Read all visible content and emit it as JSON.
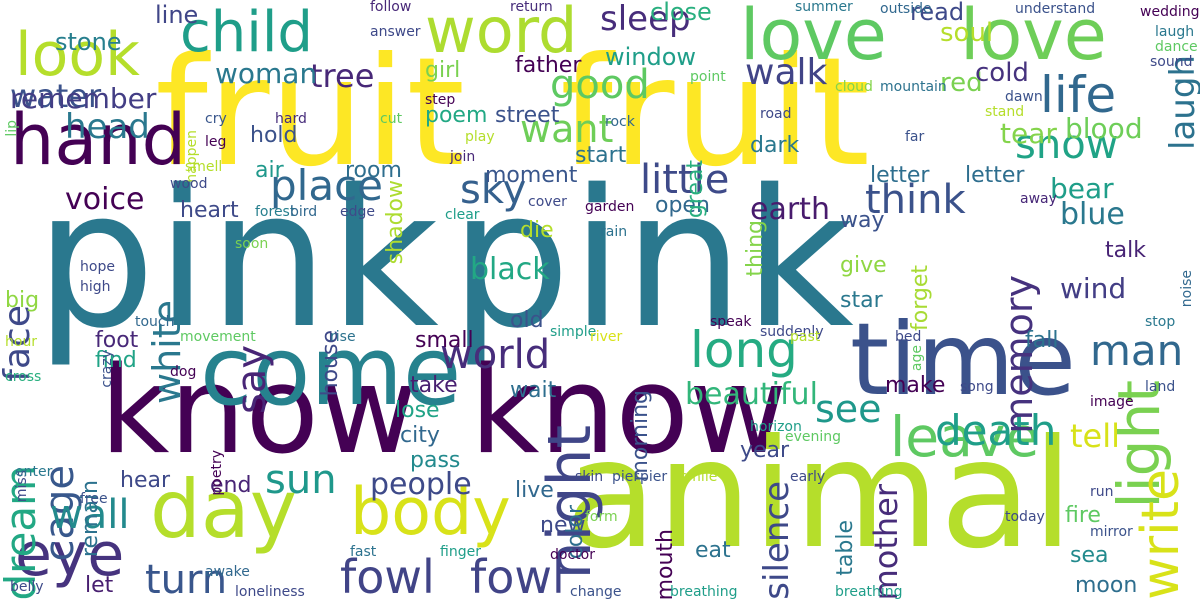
{
  "words": [
    {
      "text": "pink",
      "color": "#2a788e"
    },
    {
      "text": "pink",
      "color": "#2a788e"
    },
    {
      "text": "fruit",
      "color": "#fde725"
    },
    {
      "text": "fruit",
      "color": "#fde725"
    },
    {
      "text": "know",
      "color": "#440154"
    },
    {
      "text": "know",
      "color": "#440154"
    },
    {
      "text": "animal",
      "color": "#b5de2b"
    },
    {
      "text": "come",
      "color": "#26828e"
    },
    {
      "text": "time",
      "color": "#3b528b"
    },
    {
      "text": "day",
      "color": "#b5de2b"
    },
    {
      "text": "body",
      "color": "#d8e219"
    },
    {
      "text": "love",
      "color": "#5ec962"
    },
    {
      "text": "love",
      "color": "#6ece58"
    },
    {
      "text": "child",
      "color": "#1f9e89"
    },
    {
      "text": "word",
      "color": "#addc30"
    },
    {
      "text": "look",
      "color": "#b5de2b"
    },
    {
      "text": "hand",
      "color": "#440154"
    },
    {
      "text": "eye",
      "color": "#46337e"
    },
    {
      "text": "night",
      "color": "#404688"
    },
    {
      "text": "light",
      "color": "#7ad151"
    },
    {
      "text": "write",
      "color": "#d8e219"
    },
    {
      "text": "life",
      "color": "#31688e"
    },
    {
      "text": "long",
      "color": "#25ab82"
    },
    {
      "text": "leave",
      "color": "#5ec962"
    },
    {
      "text": "death",
      "color": "#1f9e89"
    },
    {
      "text": "fowl",
      "color": "#414487"
    },
    {
      "text": "fowl",
      "color": "#414487"
    },
    {
      "text": "place",
      "color": "#31688e"
    },
    {
      "text": "world",
      "color": "#472d7b"
    },
    {
      "text": "cage",
      "color": "#38588c"
    },
    {
      "text": "say",
      "color": "#482576"
    },
    {
      "text": "turn",
      "color": "#39568c"
    },
    {
      "text": "sun",
      "color": "#1f988b"
    },
    {
      "text": "wall",
      "color": "#238a8d"
    },
    {
      "text": "dream",
      "color": "#22a884"
    },
    {
      "text": "face",
      "color": "#3e4989"
    },
    {
      "text": "white",
      "color": "#2a788e"
    },
    {
      "text": "good",
      "color": "#5ec962"
    },
    {
      "text": "want",
      "color": "#6ece58"
    },
    {
      "text": "little",
      "color": "#3e4a89"
    },
    {
      "text": "think",
      "color": "#3b528b"
    },
    {
      "text": "sky",
      "color": "#35608d"
    },
    {
      "text": "head",
      "color": "#2a788e"
    },
    {
      "text": "walk",
      "color": "#414487"
    },
    {
      "text": "tree",
      "color": "#482878"
    },
    {
      "text": "sleep",
      "color": "#472d7b"
    },
    {
      "text": "water",
      "color": "#3b528b"
    },
    {
      "text": "remember",
      "color": "#433e85"
    },
    {
      "text": "snow",
      "color": "#20a386"
    },
    {
      "text": "man",
      "color": "#31688e"
    },
    {
      "text": "memory",
      "color": "#46327e"
    },
    {
      "text": "laugh",
      "color": "#2c728e"
    },
    {
      "text": "see",
      "color": "#1f988b"
    },
    {
      "text": "tell",
      "color": "#d8e219"
    },
    {
      "text": "beautiful",
      "color": "#32b67a"
    },
    {
      "text": "people",
      "color": "#3e4a89"
    },
    {
      "text": "silence",
      "color": "#3e4989"
    },
    {
      "text": "mother",
      "color": "#472c7a"
    },
    {
      "text": "voice",
      "color": "#440154"
    },
    {
      "text": "black",
      "color": "#22a884"
    },
    {
      "text": "earth",
      "color": "#481b6d"
    },
    {
      "text": "wind",
      "color": "#433e85"
    },
    {
      "text": "blue",
      "color": "#2a788e"
    },
    {
      "text": "bear",
      "color": "#1f9e89"
    },
    {
      "text": "blood",
      "color": "#6ece58"
    },
    {
      "text": "tear",
      "color": "#84d44b"
    },
    {
      "text": "woman",
      "color": "#2a788e"
    },
    {
      "text": "stone",
      "color": "#277f8e"
    },
    {
      "text": "line",
      "color": "#404688"
    },
    {
      "text": "soul",
      "color": "#b5de2b"
    },
    {
      "text": "red",
      "color": "#7ad151"
    },
    {
      "text": "cold",
      "color": "#46327e"
    },
    {
      "text": "close",
      "color": "#29af7f"
    },
    {
      "text": "window",
      "color": "#1f9e89"
    },
    {
      "text": "read",
      "color": "#3e4989"
    },
    {
      "text": "father",
      "color": "#440154"
    },
    {
      "text": "girl",
      "color": "#7ad151"
    },
    {
      "text": "street",
      "color": "#3b528b"
    },
    {
      "text": "poem",
      "color": "#22a884"
    },
    {
      "text": "start",
      "color": "#2c728e"
    },
    {
      "text": "hold",
      "color": "#3b528b"
    },
    {
      "text": "air",
      "color": "#1f988b"
    },
    {
      "text": "room",
      "color": "#2e6e8e"
    },
    {
      "text": "heart",
      "color": "#3e4a89"
    },
    {
      "text": "moment",
      "color": "#39568c"
    },
    {
      "text": "dark",
      "color": "#2a788e"
    },
    {
      "text": "open",
      "color": "#31688e"
    },
    {
      "text": "way",
      "color": "#3b528b"
    },
    {
      "text": "letter",
      "color": "#2e6e8e"
    },
    {
      "text": "letter",
      "color": "#2e6e8e"
    },
    {
      "text": "die",
      "color": "#b5de2b"
    },
    {
      "text": "thing",
      "color": "#84d44b"
    },
    {
      "text": "give",
      "color": "#90d743"
    },
    {
      "text": "forget",
      "color": "#a8db34"
    },
    {
      "text": "star",
      "color": "#2a788e"
    },
    {
      "text": "talk",
      "color": "#482475"
    },
    {
      "text": "old",
      "color": "#3b528b"
    },
    {
      "text": "shadow",
      "color": "#addc30"
    },
    {
      "text": "house",
      "color": "#3e4989"
    },
    {
      "text": "big",
      "color": "#90d743"
    },
    {
      "text": "small",
      "color": "#440154"
    },
    {
      "text": "foot",
      "color": "#482878"
    },
    {
      "text": "find",
      "color": "#20a386"
    },
    {
      "text": "take",
      "color": "#481f70"
    },
    {
      "text": "fall",
      "color": "#2c728e"
    },
    {
      "text": "make",
      "color": "#440154"
    },
    {
      "text": "wait",
      "color": "#2e6e8e"
    },
    {
      "text": "lose",
      "color": "#20a386"
    },
    {
      "text": "city",
      "color": "#31688e"
    },
    {
      "text": "pass",
      "color": "#238a8d"
    },
    {
      "text": "live",
      "color": "#31688e"
    },
    {
      "text": "year",
      "color": "#3e4a89"
    },
    {
      "text": "hear",
      "color": "#3e4989"
    },
    {
      "text": "end",
      "color": "#482475"
    },
    {
      "text": "let",
      "color": "#481f70"
    },
    {
      "text": "new",
      "color": "#3e4a89"
    },
    {
      "text": "eat",
      "color": "#2c728e"
    },
    {
      "text": "sea",
      "color": "#238a8d"
    },
    {
      "text": "fire",
      "color": "#5ec962"
    },
    {
      "text": "moon",
      "color": "#2e6e8e"
    },
    {
      "text": "mouth",
      "color": "#440154"
    },
    {
      "text": "morning",
      "color": "#3b528b"
    },
    {
      "text": "color",
      "color": "#2e6e8e"
    },
    {
      "text": "table",
      "color": "#2a788e"
    },
    {
      "text": "remain",
      "color": "#2c728e"
    },
    {
      "text": "great",
      "color": "#29af7f"
    },
    {
      "text": "follow",
      "color": "#482878"
    },
    {
      "text": "return",
      "color": "#472d7b"
    },
    {
      "text": "summer",
      "color": "#2a788e"
    },
    {
      "text": "outside",
      "color": "#31688e"
    },
    {
      "text": "understand",
      "color": "#3b528b"
    },
    {
      "text": "wedding",
      "color": "#440154"
    },
    {
      "text": "laugh",
      "color": "#2a788e"
    },
    {
      "text": "dance",
      "color": "#5ec962"
    },
    {
      "text": "sound",
      "color": "#3e4a89"
    },
    {
      "text": "answer",
      "color": "#3e4989"
    },
    {
      "text": "point",
      "color": "#5ec962"
    },
    {
      "text": "cloud",
      "color": "#84d44b"
    },
    {
      "text": "mountain",
      "color": "#2c728e"
    },
    {
      "text": "dawn",
      "color": "#3b528b"
    },
    {
      "text": "stand",
      "color": "#b5de2b"
    },
    {
      "text": "step",
      "color": "#440154"
    },
    {
      "text": "road",
      "color": "#3e4989"
    },
    {
      "text": "happen",
      "color": "#b5de2b"
    },
    {
      "text": "cry",
      "color": "#39568c"
    },
    {
      "text": "hard",
      "color": "#472d7b"
    },
    {
      "text": "cut",
      "color": "#5ec962"
    },
    {
      "text": "leg",
      "color": "#440154"
    },
    {
      "text": "play",
      "color": "#b5de2b"
    },
    {
      "text": "rock",
      "color": "#31688e"
    },
    {
      "text": "far",
      "color": "#3b528b"
    },
    {
      "text": "lip",
      "color": "#5ec962"
    },
    {
      "text": "join",
      "color": "#482878"
    },
    {
      "text": "smell",
      "color": "#b5de2b"
    },
    {
      "text": "wood",
      "color": "#3e4a89"
    },
    {
      "text": "forest",
      "color": "#277f8e"
    },
    {
      "text": "bird",
      "color": "#31688e"
    },
    {
      "text": "edge",
      "color": "#3e4a89"
    },
    {
      "text": "clear",
      "color": "#1f9e89"
    },
    {
      "text": "cover",
      "color": "#3e4a89"
    },
    {
      "text": "garden",
      "color": "#440154"
    },
    {
      "text": "rain",
      "color": "#2c728e"
    },
    {
      "text": "away",
      "color": "#482878"
    },
    {
      "text": "soon",
      "color": "#7ad151"
    },
    {
      "text": "hope",
      "color": "#3e4a89"
    },
    {
      "text": "high",
      "color": "#3e4989"
    },
    {
      "text": "touch",
      "color": "#31688e"
    },
    {
      "text": "movement",
      "color": "#5ec962"
    },
    {
      "text": "rise",
      "color": "#2c728e"
    },
    {
      "text": "simple",
      "color": "#1f9e89"
    },
    {
      "text": "river",
      "color": "#d8e219"
    },
    {
      "text": "speak",
      "color": "#440154"
    },
    {
      "text": "suddenly",
      "color": "#3e4989"
    },
    {
      "text": "past",
      "color": "#b5de2b"
    },
    {
      "text": "stop",
      "color": "#2a788e"
    },
    {
      "text": "bed",
      "color": "#3e4a89"
    },
    {
      "text": "age",
      "color": "#5ec962"
    },
    {
      "text": "noise",
      "color": "#31688e"
    },
    {
      "text": "hour",
      "color": "#b5de2b"
    },
    {
      "text": "crazy",
      "color": "#3b528b"
    },
    {
      "text": "cross",
      "color": "#29af7f"
    },
    {
      "text": "dog",
      "color": "#440154"
    },
    {
      "text": "song",
      "color": "#3e4a89"
    },
    {
      "text": "land",
      "color": "#3b528b"
    },
    {
      "text": "image",
      "color": "#440154"
    },
    {
      "text": "horizon",
      "color": "#1f9e89"
    },
    {
      "text": "evening",
      "color": "#5ec962"
    },
    {
      "text": "miss",
      "color": "#3e4989"
    },
    {
      "text": "enter",
      "color": "#2a788e"
    },
    {
      "text": "poetry",
      "color": "#440154"
    },
    {
      "text": "skin",
      "color": "#3e4a89"
    },
    {
      "text": "pier",
      "color": "#3b528b"
    },
    {
      "text": "pier",
      "color": "#3b528b"
    },
    {
      "text": "smile",
      "color": "#b5de2b"
    },
    {
      "text": "early",
      "color": "#3e4a89"
    },
    {
      "text": "run",
      "color": "#3e4989"
    },
    {
      "text": "free",
      "color": "#3b528b"
    },
    {
      "text": "form",
      "color": "#7ad151"
    },
    {
      "text": "today",
      "color": "#3e4a89"
    },
    {
      "text": "mirror",
      "color": "#3b528b"
    },
    {
      "text": "fast",
      "color": "#2c728e"
    },
    {
      "text": "finger",
      "color": "#1f9e89"
    },
    {
      "text": "doctor",
      "color": "#440154"
    },
    {
      "text": "awake",
      "color": "#31688e"
    },
    {
      "text": "belly",
      "color": "#3e4a89"
    },
    {
      "text": "loneliness",
      "color": "#3e4989"
    },
    {
      "text": "change",
      "color": "#3b528b"
    },
    {
      "text": "breathing",
      "color": "#1f9e89"
    },
    {
      "text": "breathing",
      "color": "#1f9e89"
    }
  ]
}
